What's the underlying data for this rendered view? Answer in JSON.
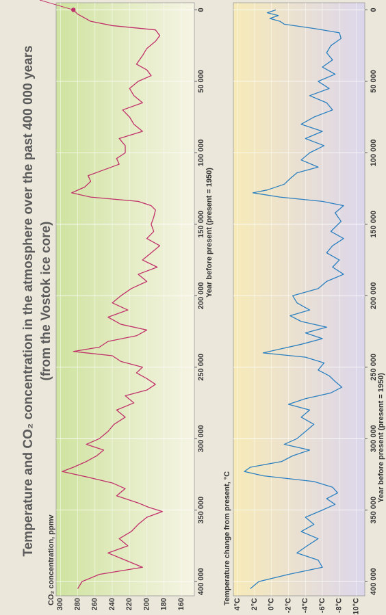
{
  "chart_data": [
    {
      "type": "line",
      "title": "Temperature and CO₂ concentration in the atmosphere over the past 400 000 years",
      "subtitle": "(from the Vostok ice core)",
      "y_label": "CO₂ concentration, ppmv",
      "x_label": "Year before present (present = 1950)",
      "xlim": [
        410000,
        -5000
      ],
      "xticks": [
        0,
        {
          "value": 50000,
          "label": "50 000"
        },
        {
          "value": 100000,
          "label": "100 000"
        },
        {
          "value": 150000,
          "label": "150 000"
        },
        {
          "value": 200000,
          "label": "200 000"
        },
        {
          "value": 250000,
          "label": "250 000"
        },
        {
          "value": 300000,
          "label": "300 000"
        },
        {
          "value": 350000,
          "label": "350 000"
        },
        {
          "value": 400000,
          "label": "400 000"
        }
      ],
      "ylim": [
        305,
        145
      ],
      "yticks": [
        300,
        280,
        260,
        240,
        220,
        200,
        180,
        160
      ],
      "grid": true,
      "x": [
        0,
        3000,
        8000,
        11000,
        14000,
        18000,
        22000,
        27000,
        32000,
        38000,
        42000,
        46000,
        50000,
        55000,
        60000,
        65000,
        70000,
        75000,
        80000,
        85000,
        90000,
        95000,
        100000,
        104000,
        108000,
        112000,
        116000,
        120000,
        124000,
        128000,
        131000,
        134000,
        137000,
        140000,
        145000,
        150000,
        155000,
        160000,
        165000,
        170000,
        175000,
        180000,
        185000,
        190000,
        195000,
        200000,
        205000,
        210000,
        215000,
        220000,
        224000,
        228000,
        232000,
        236000,
        239000,
        242000,
        246000,
        250000,
        254000,
        258000,
        262000,
        266000,
        270000,
        275000,
        280000,
        285000,
        290000,
        295000,
        300000,
        304000,
        308000,
        312000,
        316000,
        320000,
        323000,
        327000,
        331000,
        335000,
        340000,
        345000,
        348000,
        351000,
        355000,
        360000,
        365000,
        370000,
        375000,
        380000,
        385000,
        390000,
        395000,
        400000,
        405000
      ],
      "series": [
        {
          "name": "CO₂",
          "color": "#c0306a",
          "values": [
            285,
            280,
            265,
            240,
            190,
            185,
            190,
            200,
            205,
            212,
            200,
            195,
            210,
            220,
            215,
            205,
            228,
            220,
            215,
            205,
            232,
            225,
            225,
            235,
            232,
            250,
            268,
            265,
            272,
            287,
            265,
            210,
            195,
            190,
            192,
            195,
            192,
            200,
            185,
            195,
            205,
            188,
            210,
            200,
            218,
            230,
            240,
            222,
            245,
            230,
            200,
            212,
            245,
            255,
            285,
            240,
            230,
            205,
            212,
            200,
            190,
            200,
            225,
            215,
            235,
            225,
            238,
            245,
            255,
            270,
            250,
            258,
            270,
            285,
            298,
            268,
            240,
            225,
            235,
            210,
            198,
            182,
            200,
            210,
            218,
            232,
            222,
            245,
            225,
            205,
            255,
            275,
            280
          ]
        }
      ]
    },
    {
      "type": "line",
      "y_label": "Temperature change from present, °C",
      "x_label": "Year before present (present = 1950)",
      "xlim": [
        410000,
        -5000
      ],
      "xticks": [
        0,
        {
          "value": 50000,
          "label": "50 000"
        },
        {
          "value": 100000,
          "label": "100 000"
        },
        {
          "value": 150000,
          "label": "150 000"
        },
        {
          "value": 200000,
          "label": "200 000"
        },
        {
          "value": 250000,
          "label": "250 000"
        },
        {
          "value": 300000,
          "label": "300 000"
        },
        {
          "value": 350000,
          "label": "350 000"
        },
        {
          "value": 400000,
          "label": "400 000"
        }
      ],
      "ylim": [
        4.5,
        -11
      ],
      "yticks": [
        {
          "value": 4,
          "label": "4°C"
        },
        {
          "value": 2,
          "label": "2°C"
        },
        {
          "value": 0,
          "label": "0°C"
        },
        {
          "value": -2,
          "label": "-2°C"
        },
        {
          "value": -4,
          "label": "-4°C"
        },
        {
          "value": -6,
          "label": "-6°C"
        },
        {
          "value": -8,
          "label": "-8°C"
        },
        {
          "value": -10,
          "label": "-10°C"
        }
      ],
      "grid": true,
      "x": [
        0,
        2000,
        4000,
        6000,
        8000,
        10000,
        13000,
        16000,
        20000,
        25000,
        30000,
        35000,
        40000,
        45000,
        50000,
        55000,
        60000,
        65000,
        70000,
        75000,
        80000,
        85000,
        90000,
        95000,
        100000,
        105000,
        110000,
        114000,
        118000,
        122000,
        126000,
        128000,
        131000,
        134000,
        137000,
        142000,
        148000,
        155000,
        160000,
        165000,
        170000,
        175000,
        180000,
        185000,
        190000,
        195000,
        200000,
        205000,
        210000,
        214000,
        218000,
        222000,
        226000,
        230000,
        234000,
        238000,
        240000,
        243000,
        247000,
        252000,
        256000,
        260000,
        264000,
        268000,
        272000,
        276000,
        280000,
        285000,
        290000,
        295000,
        300000,
        304000,
        308000,
        312000,
        316000,
        320000,
        323000,
        326000,
        330000,
        334000,
        338000,
        342000,
        346000,
        350000,
        355000,
        360000,
        365000,
        370000,
        375000,
        380000,
        385000,
        390000,
        395000,
        400000,
        405000
      ],
      "series": [
        {
          "name": "Temperature",
          "color": "#2a7fc0",
          "values": [
            -0.5,
            0.5,
            -0.8,
            0.2,
            -1,
            -1.5,
            -5,
            -8,
            -8.2,
            -7,
            -6.5,
            -7.2,
            -6,
            -7.5,
            -5.5,
            -6.8,
            -4.5,
            -6.5,
            -7.2,
            -5,
            -3.5,
            -6,
            -4,
            -6.2,
            -4.5,
            -3.5,
            -5.5,
            -3,
            -2.2,
            -1.5,
            0.5,
            2.2,
            -1,
            -6,
            -8.5,
            -7.5,
            -8.2,
            -7,
            -8.5,
            -7.2,
            -6.5,
            -8,
            -7.2,
            -8.5,
            -6.5,
            -5.5,
            -2.5,
            -3,
            -4.5,
            -2.2,
            -3.5,
            -6.5,
            -4,
            -6,
            -3.5,
            -0.5,
            1,
            -4,
            -6.2,
            -5.5,
            -6.8,
            -7.5,
            -8.3,
            -7,
            -4,
            -2,
            -4.5,
            -3.5,
            -5,
            -4,
            -3,
            -1.5,
            -4.5,
            -2.5,
            -1.2,
            2.5,
            3.2,
            1,
            -5,
            -7.2,
            -7.8,
            -6.5,
            -7.5,
            -6,
            -4,
            -5,
            -3.5,
            -5.5,
            -4.2,
            -3,
            -5.5,
            -6,
            -2,
            1.5,
            2.5
          ]
        }
      ]
    }
  ]
}
